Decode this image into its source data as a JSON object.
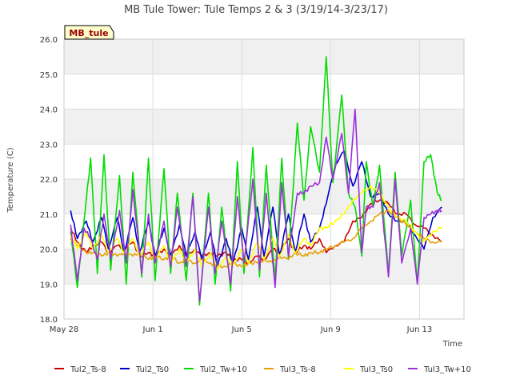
{
  "chart_data": {
    "type": "line",
    "title": "MB Tule Tower: Tule Temps 2 & 3 (3/19/14-3/23/17)",
    "xlabel": "Time",
    "ylabel": "Temperature (C)",
    "site_badge": "MB_tule",
    "ylim": [
      18.0,
      26.0
    ],
    "y_ticks": [
      "18.0",
      "19.0",
      "20.0",
      "21.0",
      "22.0",
      "23.0",
      "24.0",
      "25.0",
      "26.0"
    ],
    "xlim_days": [
      0,
      18
    ],
    "x_ticks": [
      {
        "day": 0,
        "label": "May 28"
      },
      {
        "day": 4,
        "label": "Jun 1"
      },
      {
        "day": 8,
        "label": "Jun 5"
      },
      {
        "day": 12,
        "label": "Jun 9"
      },
      {
        "day": 16,
        "label": "Jun 13"
      }
    ],
    "grid": true,
    "legend_position": "bottom",
    "series": [
      {
        "name": "Tul2_Ts-8",
        "color": "#cc0000",
        "x": [
          0.3,
          0.6,
          1.0,
          1.3,
          1.7,
          2.0,
          2.4,
          2.7,
          3.1,
          3.4,
          3.8,
          4.1,
          4.5,
          4.8,
          5.2,
          5.5,
          5.9,
          6.2,
          6.6,
          6.9,
          7.3,
          7.6,
          8.0,
          8.3,
          8.7,
          9.0,
          9.4,
          9.7,
          10.1,
          10.4,
          10.8,
          11.1,
          11.5,
          11.8,
          12.2,
          12.6,
          13.0,
          13.4,
          13.8,
          14.2,
          14.6,
          15.0,
          15.4,
          15.8,
          16.2,
          16.6,
          17.0
        ],
        "values": [
          20.6,
          20.2,
          19.9,
          20.1,
          20.2,
          19.9,
          20.1,
          20.0,
          20.2,
          19.8,
          19.9,
          19.8,
          20.0,
          19.8,
          20.1,
          19.8,
          20.0,
          19.8,
          19.9,
          19.8,
          19.9,
          19.7,
          19.7,
          19.6,
          19.8,
          19.7,
          20.0,
          19.9,
          20.3,
          19.9,
          20.1,
          20.0,
          20.3,
          19.9,
          20.1,
          20.2,
          20.8,
          20.9,
          21.3,
          21.4,
          21.3,
          21.0,
          21.0,
          20.7,
          20.6,
          20.4,
          20.2
        ]
      },
      {
        "name": "Tul2_Ts0",
        "color": "#0000cc",
        "x": [
          0.3,
          0.6,
          1.0,
          1.3,
          1.7,
          2.0,
          2.4,
          2.7,
          3.1,
          3.4,
          3.8,
          4.1,
          4.5,
          4.8,
          5.2,
          5.5,
          5.9,
          6.2,
          6.6,
          6.9,
          7.3,
          7.6,
          8.0,
          8.3,
          8.7,
          9.0,
          9.4,
          9.7,
          10.1,
          10.4,
          10.8,
          11.1,
          11.5,
          11.8,
          12.2,
          12.6,
          13.0,
          13.4,
          13.8,
          14.2,
          14.6,
          15.0,
          15.4,
          15.8,
          16.2,
          16.6,
          17.0
        ],
        "values": [
          21.1,
          20.3,
          20.8,
          20.2,
          20.9,
          20.0,
          20.9,
          19.9,
          20.9,
          19.9,
          20.8,
          19.8,
          20.6,
          19.8,
          20.7,
          19.8,
          20.5,
          19.7,
          20.5,
          19.5,
          20.3,
          19.6,
          20.6,
          19.7,
          21.2,
          19.8,
          21.2,
          19.8,
          21.0,
          19.9,
          21.0,
          20.2,
          20.6,
          21.3,
          22.4,
          22.8,
          21.8,
          22.5,
          21.5,
          21.6,
          21.0,
          20.8,
          20.8,
          20.4,
          20.0,
          20.9,
          21.2
        ]
      },
      {
        "name": "Tul2_Tw+10",
        "color": "#00dd00",
        "x": [
          0.3,
          0.6,
          0.9,
          1.2,
          1.5,
          1.8,
          2.1,
          2.5,
          2.8,
          3.1,
          3.5,
          3.8,
          4.1,
          4.5,
          4.8,
          5.1,
          5.5,
          5.8,
          6.1,
          6.5,
          6.8,
          7.1,
          7.5,
          7.8,
          8.1,
          8.5,
          8.8,
          9.1,
          9.5,
          9.8,
          10.1,
          10.5,
          10.8,
          11.1,
          11.5,
          11.8,
          12.1,
          12.5,
          12.8,
          13.1,
          13.4,
          13.6,
          13.9,
          14.2,
          14.6,
          14.9,
          15.2,
          15.6,
          15.9,
          16.2,
          16.5,
          16.8,
          17.0
        ],
        "values": [
          20.5,
          18.9,
          20.8,
          22.6,
          19.3,
          22.7,
          19.4,
          22.1,
          19.0,
          22.2,
          19.2,
          22.6,
          19.1,
          22.3,
          19.3,
          21.6,
          19.1,
          21.6,
          18.4,
          21.6,
          19.0,
          21.2,
          18.8,
          22.5,
          19.3,
          22.9,
          19.2,
          22.4,
          19.1,
          22.6,
          19.7,
          23.6,
          21.4,
          23.5,
          22.2,
          25.5,
          21.9,
          24.4,
          21.6,
          21.2,
          19.8,
          22.5,
          21.2,
          22.4,
          19.3,
          22.2,
          19.8,
          21.4,
          19.0,
          22.5,
          22.7,
          21.6,
          21.4
        ]
      },
      {
        "name": "Tul3_Ts-8",
        "color": "#e8a000",
        "x": [
          0.3,
          0.6,
          1.0,
          1.3,
          1.7,
          2.0,
          2.4,
          2.7,
          3.1,
          3.4,
          3.8,
          4.1,
          4.5,
          4.8,
          5.2,
          5.5,
          5.9,
          6.2,
          6.6,
          6.9,
          7.3,
          7.6,
          8.0,
          8.3,
          8.7,
          9.0,
          9.4,
          9.7,
          10.1,
          10.4,
          10.8,
          11.1,
          11.5,
          11.8,
          12.2,
          12.6,
          13.0,
          13.4,
          13.8,
          14.2,
          14.6,
          15.0,
          15.4,
          15.8,
          16.2,
          16.6,
          17.0
        ],
        "values": [
          20.3,
          20.1,
          19.9,
          19.9,
          19.8,
          19.9,
          19.8,
          19.9,
          19.8,
          19.9,
          19.7,
          19.8,
          19.7,
          19.8,
          19.6,
          19.7,
          19.6,
          19.7,
          19.6,
          19.5,
          19.5,
          19.6,
          19.5,
          19.6,
          19.6,
          19.7,
          19.6,
          19.8,
          19.7,
          19.9,
          19.8,
          19.9,
          19.9,
          20.0,
          20.1,
          20.2,
          20.3,
          20.6,
          20.8,
          21.0,
          21.1,
          20.9,
          20.7,
          20.5,
          20.3,
          20.2,
          20.2
        ]
      },
      {
        "name": "Tul3_Ts0",
        "color": "#ffff00",
        "x": [
          0.3,
          0.6,
          1.0,
          1.3,
          1.7,
          2.0,
          2.4,
          2.7,
          3.1,
          3.4,
          3.8,
          4.1,
          4.5,
          4.8,
          5.2,
          5.5,
          5.9,
          6.2,
          6.6,
          6.9,
          7.3,
          7.6,
          8.0,
          8.3,
          8.7,
          9.0,
          9.4,
          9.7,
          10.1,
          10.4,
          10.8,
          11.1,
          11.5,
          11.8,
          12.2,
          12.6,
          13.0,
          13.4,
          13.8,
          14.2,
          14.6,
          15.0,
          15.4,
          15.8,
          16.2,
          16.6,
          17.0
        ],
        "values": [
          20.4,
          20.0,
          20.5,
          20.0,
          20.4,
          19.9,
          20.3,
          19.9,
          20.3,
          19.8,
          20.2,
          19.7,
          20.1,
          19.6,
          20.0,
          19.6,
          20.0,
          19.5,
          19.9,
          19.4,
          19.8,
          19.5,
          20.0,
          19.6,
          20.2,
          19.7,
          20.3,
          19.8,
          20.4,
          19.9,
          20.3,
          20.1,
          20.6,
          20.6,
          20.8,
          21.0,
          21.4,
          21.6,
          21.8,
          21.6,
          21.2,
          20.9,
          20.8,
          20.5,
          20.2,
          20.5,
          20.6
        ]
      },
      {
        "name": "Tul3_Tw+10",
        "color": "#9b30d9",
        "x": [
          0.3,
          0.6,
          0.9,
          1.2,
          1.5,
          1.8,
          2.1,
          2.5,
          2.8,
          3.1,
          3.5,
          3.8,
          4.1,
          4.5,
          4.8,
          5.1,
          5.5,
          5.8,
          6.1,
          6.5,
          6.8,
          7.1,
          7.5,
          7.8,
          8.1,
          8.5,
          8.8,
          9.1,
          9.5,
          9.8,
          10.1,
          10.5,
          10.8,
          11.1,
          11.5,
          11.8,
          12.1,
          12.5,
          12.8,
          13.1,
          13.4,
          13.6,
          13.9,
          14.2,
          14.6,
          14.9,
          15.2,
          15.6,
          15.9,
          16.2,
          16.5,
          16.8,
          17.0
        ],
        "values": [
          20.7,
          19.1,
          20.6,
          20.3,
          19.7,
          21.0,
          19.7,
          21.1,
          19.6,
          21.7,
          19.3,
          21.0,
          19.6,
          20.8,
          19.5,
          21.2,
          19.5,
          21.5,
          18.5,
          21.2,
          19.3,
          20.8,
          19.0,
          21.5,
          19.6,
          22.0,
          19.4,
          21.6,
          18.9,
          21.9,
          19.8,
          21.6,
          21.6,
          21.8,
          21.9,
          23.2,
          22.0,
          23.3,
          21.6,
          24.0,
          19.9,
          21.2,
          21.2,
          21.9,
          19.2,
          22.0,
          19.6,
          20.6,
          19.0,
          20.9,
          21.0,
          21.1,
          21.1
        ]
      }
    ]
  }
}
